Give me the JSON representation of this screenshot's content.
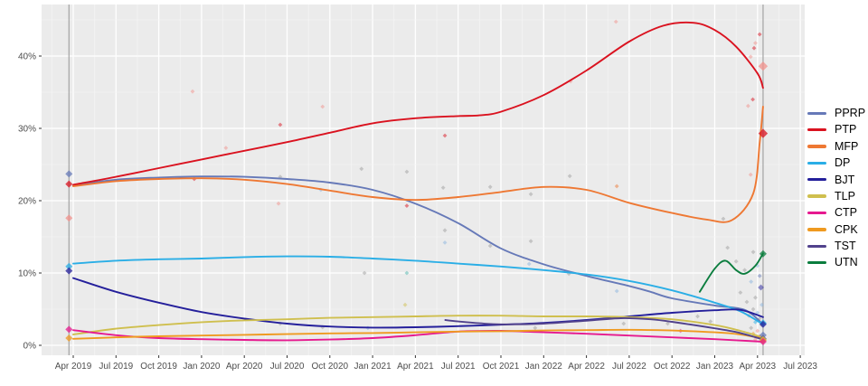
{
  "chart_data": {
    "type": "line",
    "title": "",
    "xlabel": "",
    "ylabel": "",
    "grid": true,
    "legend_position": "right",
    "x_tick_labels": [
      "Apr 2019",
      "Jul 2019",
      "Oct 2019",
      "Jan 2020",
      "Apr 2020",
      "Jul 2020",
      "Oct 2020",
      "Jan 2021",
      "Apr 2021",
      "Jul 2021",
      "Oct 2021",
      "Jan 2022",
      "Apr 2022",
      "Jul 2022",
      "Oct 2022",
      "Jan 2023",
      "Apr 2023",
      "Jul 2023"
    ],
    "y_tick_labels": [
      "0%",
      "10%",
      "20%",
      "30%",
      "40%"
    ],
    "y_tick_values": [
      0,
      10,
      20,
      30,
      40
    ],
    "x_domain_quarters": [
      -0.74,
      17.1
    ],
    "y_domain_pct": [
      -1.4,
      47.1
    ],
    "election_markers_x": [
      -0.1,
      16.13
    ],
    "series": [
      {
        "name": "PPRP",
        "color": "#6679b8",
        "points": [
          [
            0,
            22.1
          ],
          [
            1,
            22.9
          ],
          [
            2,
            23.2
          ],
          [
            3,
            23.35
          ],
          [
            4,
            23.3
          ],
          [
            5,
            23.0
          ],
          [
            6,
            22.5
          ],
          [
            7,
            21.5
          ],
          [
            8,
            19.6
          ],
          [
            9,
            16.9
          ],
          [
            10,
            13.4
          ],
          [
            11,
            11.2
          ],
          [
            12,
            9.6
          ],
          [
            13,
            8.2
          ],
          [
            13.5,
            7.4
          ],
          [
            14,
            6.5
          ],
          [
            15,
            5.5
          ],
          [
            15.7,
            4.9
          ],
          [
            16.13,
            2.9
          ]
        ]
      },
      {
        "name": "PTP",
        "color": "#da121f",
        "points": [
          [
            0,
            22.2
          ],
          [
            1,
            23.3
          ],
          [
            2,
            24.5
          ],
          [
            3,
            25.7
          ],
          [
            4,
            26.9
          ],
          [
            5,
            28.1
          ],
          [
            6,
            29.4
          ],
          [
            7,
            30.7
          ],
          [
            8,
            31.4
          ],
          [
            9,
            31.7
          ],
          [
            9.5,
            31.8
          ],
          [
            10,
            32.3
          ],
          [
            11,
            34.6
          ],
          [
            12,
            38.0
          ],
          [
            13,
            42.0
          ],
          [
            13.8,
            44.2
          ],
          [
            14.5,
            44.6
          ],
          [
            15,
            43.6
          ],
          [
            15.5,
            41.3
          ],
          [
            16,
            37.6
          ],
          [
            16.13,
            35.6
          ]
        ]
      },
      {
        "name": "MFP",
        "color": "#ee7833",
        "points": [
          [
            0,
            22.0
          ],
          [
            1,
            22.7
          ],
          [
            2,
            23.0
          ],
          [
            3,
            23.1
          ],
          [
            4,
            22.9
          ],
          [
            5,
            22.3
          ],
          [
            6,
            21.4
          ],
          [
            7,
            20.5
          ],
          [
            8,
            20.1
          ],
          [
            9,
            20.5
          ],
          [
            10,
            21.2
          ],
          [
            11,
            21.9
          ],
          [
            12,
            21.5
          ],
          [
            13,
            19.7
          ],
          [
            14,
            18.3
          ],
          [
            14.8,
            17.4
          ],
          [
            15.4,
            17.3
          ],
          [
            15.9,
            21.0
          ],
          [
            16.05,
            28.0
          ],
          [
            16.13,
            33.0
          ]
        ]
      },
      {
        "name": "DP",
        "color": "#2aaee6",
        "points": [
          [
            0,
            11.3
          ],
          [
            1,
            11.7
          ],
          [
            2,
            11.9
          ],
          [
            3,
            12.0
          ],
          [
            4,
            12.2
          ],
          [
            5,
            12.3
          ],
          [
            6,
            12.25
          ],
          [
            7,
            12.0
          ],
          [
            8,
            11.7
          ],
          [
            9,
            11.3
          ],
          [
            10,
            10.9
          ],
          [
            11,
            10.4
          ],
          [
            12,
            9.8
          ],
          [
            13,
            8.9
          ],
          [
            14,
            7.6
          ],
          [
            15,
            5.9
          ],
          [
            15.6,
            4.7
          ],
          [
            16.13,
            2.9
          ]
        ]
      },
      {
        "name": "BJT",
        "color": "#241f9b",
        "points": [
          [
            0,
            9.3
          ],
          [
            1,
            7.4
          ],
          [
            2,
            5.9
          ],
          [
            3,
            4.6
          ],
          [
            4,
            3.7
          ],
          [
            5,
            3.0
          ],
          [
            6,
            2.6
          ],
          [
            7,
            2.45
          ],
          [
            8,
            2.5
          ],
          [
            9,
            2.65
          ],
          [
            10,
            2.85
          ],
          [
            11,
            3.1
          ],
          [
            12,
            3.5
          ],
          [
            13,
            4.0
          ],
          [
            14,
            4.5
          ],
          [
            15,
            4.85
          ],
          [
            15.6,
            4.9
          ],
          [
            16.13,
            3.9
          ]
        ]
      },
      {
        "name": "TLP",
        "color": "#cfbf4e",
        "points": [
          [
            0,
            1.5
          ],
          [
            1,
            2.3
          ],
          [
            2,
            2.8
          ],
          [
            3,
            3.2
          ],
          [
            4,
            3.45
          ],
          [
            5,
            3.6
          ],
          [
            6,
            3.8
          ],
          [
            7,
            3.9
          ],
          [
            8,
            4.0
          ],
          [
            9,
            4.1
          ],
          [
            10,
            4.1
          ],
          [
            11,
            4.0
          ],
          [
            12,
            4.0
          ],
          [
            13,
            3.9
          ],
          [
            14,
            3.6
          ],
          [
            15,
            2.8
          ],
          [
            15.6,
            2.0
          ],
          [
            16.13,
            1.1
          ]
        ]
      },
      {
        "name": "CTP",
        "color": "#e6198f",
        "points": [
          [
            0,
            2.1
          ],
          [
            1,
            1.4
          ],
          [
            2,
            1.0
          ],
          [
            3,
            0.85
          ],
          [
            4,
            0.75
          ],
          [
            5,
            0.7
          ],
          [
            6,
            0.8
          ],
          [
            7,
            1.0
          ],
          [
            8,
            1.4
          ],
          [
            9,
            1.9
          ],
          [
            10,
            2.0
          ],
          [
            11,
            1.8
          ],
          [
            12,
            1.6
          ],
          [
            13,
            1.35
          ],
          [
            14,
            1.1
          ],
          [
            15,
            0.85
          ],
          [
            16.13,
            0.5
          ]
        ]
      },
      {
        "name": "CPK",
        "color": "#ef9a20",
        "points": [
          [
            0,
            0.9
          ],
          [
            1,
            1.1
          ],
          [
            2,
            1.25
          ],
          [
            3,
            1.35
          ],
          [
            4,
            1.45
          ],
          [
            5,
            1.55
          ],
          [
            6,
            1.65
          ],
          [
            7,
            1.7
          ],
          [
            8,
            1.8
          ],
          [
            9,
            1.9
          ],
          [
            10,
            1.95
          ],
          [
            11,
            2.05
          ],
          [
            12,
            2.1
          ],
          [
            13,
            2.15
          ],
          [
            14,
            2.05
          ],
          [
            15,
            1.8
          ],
          [
            15.6,
            1.5
          ],
          [
            16.13,
            0.95
          ]
        ]
      },
      {
        "name": "TST",
        "color": "#51428c",
        "points": [
          [
            8.7,
            3.5
          ],
          [
            9,
            3.3
          ],
          [
            9.5,
            3.05
          ],
          [
            10,
            2.9
          ],
          [
            11,
            3.0
          ],
          [
            12,
            3.4
          ],
          [
            12.8,
            3.75
          ],
          [
            13.5,
            3.6
          ],
          [
            14,
            3.25
          ],
          [
            15,
            2.35
          ],
          [
            15.6,
            1.7
          ],
          [
            16.13,
            0.8
          ]
        ]
      },
      {
        "name": "UTN",
        "color": "#0b7d3e",
        "points": [
          [
            14.65,
            7.4
          ],
          [
            15.0,
            10.6
          ],
          [
            15.25,
            11.7
          ],
          [
            15.5,
            10.4
          ],
          [
            15.7,
            9.9
          ],
          [
            15.95,
            11.0
          ],
          [
            16.13,
            12.7
          ]
        ]
      }
    ],
    "result_markers": [
      [
        -0.1,
        23.7,
        "PPRP",
        2
      ],
      [
        -0.1,
        22.3,
        "PTP",
        2
      ],
      [
        -0.1,
        17.6,
        "salmon",
        2
      ],
      [
        -0.1,
        10.9,
        "DP",
        2
      ],
      [
        -0.1,
        10.3,
        "BJT",
        2
      ],
      [
        -0.1,
        2.2,
        "CTP",
        2
      ],
      [
        -0.1,
        1.0,
        "CPK",
        2
      ],
      [
        16.13,
        38.6,
        "salmon",
        3
      ],
      [
        16.13,
        29.3,
        "PTP",
        3
      ],
      [
        16.13,
        12.65,
        "UTN",
        2
      ],
      [
        16.13,
        3.1,
        "DP",
        2
      ],
      [
        16.13,
        2.9,
        "BJT",
        2
      ],
      [
        16.13,
        1.4,
        "PPRP",
        2
      ],
      [
        16.13,
        0.9,
        "TST",
        2
      ],
      [
        16.13,
        0.8,
        "TLP",
        2
      ],
      [
        16.13,
        0.65,
        "CPK",
        2
      ],
      [
        16.13,
        0.5,
        "CTP",
        2
      ]
    ],
    "scatter": [
      [
        2.79,
        35.1,
        "salmon",
        1
      ],
      [
        5.83,
        33.0,
        "salmon",
        1
      ],
      [
        4.84,
        30.5,
        "PTP",
        1
      ],
      [
        3.57,
        27.3,
        "salmon",
        1
      ],
      [
        2.83,
        23.0,
        "PTP",
        1
      ],
      [
        4.84,
        23.3,
        "gray",
        1
      ],
      [
        6.74,
        24.4,
        "gray",
        1
      ],
      [
        7.8,
        24.0,
        "gray",
        1
      ],
      [
        5.79,
        21.5,
        "ltblue",
        1
      ],
      [
        4.8,
        19.6,
        "salmon",
        1
      ],
      [
        7.8,
        19.3,
        "PTP",
        1
      ],
      [
        8.69,
        29.0,
        "PTP",
        1
      ],
      [
        8.65,
        21.8,
        "gray",
        1
      ],
      [
        9.75,
        21.9,
        "gray",
        1
      ],
      [
        10.7,
        20.9,
        "gray",
        1
      ],
      [
        11.61,
        23.4,
        "gray",
        1
      ],
      [
        12.71,
        22.0,
        "MFP",
        1
      ],
      [
        8.69,
        15.9,
        "gray",
        1
      ],
      [
        8.69,
        14.2,
        "ltblue",
        1
      ],
      [
        9.75,
        13.75,
        "gray",
        1
      ],
      [
        10.7,
        14.4,
        "gray",
        1
      ],
      [
        11.63,
        36.5,
        "salmon",
        1
      ],
      [
        12.69,
        44.75,
        "salmon",
        1
      ],
      [
        6.81,
        10.0,
        "gray",
        1
      ],
      [
        7.8,
        10.0,
        "teal",
        1
      ],
      [
        10.66,
        11.25,
        "ltblue",
        1
      ],
      [
        11.59,
        9.9,
        "gray",
        1
      ],
      [
        12.71,
        7.5,
        "ltblue",
        1
      ],
      [
        4.84,
        3.0,
        "gray",
        1
      ],
      [
        5.83,
        2.5,
        "gray",
        1
      ],
      [
        6.89,
        2.4,
        "ltblue",
        1
      ],
      [
        7.76,
        5.6,
        "TLP",
        1
      ],
      [
        10.8,
        2.4,
        "gray",
        1
      ],
      [
        12.87,
        3.0,
        "gray",
        1
      ],
      [
        13.9,
        3.0,
        "gray",
        1
      ],
      [
        14.2,
        2.0,
        "CTP",
        1
      ],
      [
        14.6,
        4.0,
        "gray",
        1
      ],
      [
        14.9,
        3.3,
        "gray",
        1
      ],
      [
        16.05,
        43.0,
        "PTP",
        1
      ],
      [
        15.95,
        41.8,
        "salmon",
        1
      ],
      [
        15.92,
        41.1,
        "PTP",
        1
      ],
      [
        15.84,
        39.9,
        "salmon",
        1
      ],
      [
        15.89,
        34.0,
        "PTP",
        1
      ],
      [
        15.78,
        33.1,
        "salmon",
        1
      ],
      [
        15.84,
        23.6,
        "salmon",
        1
      ],
      [
        15.2,
        17.5,
        "gray",
        1
      ],
      [
        15.3,
        13.5,
        "gray",
        1
      ],
      [
        15.9,
        12.9,
        "gray",
        1
      ],
      [
        15.5,
        11.6,
        "gray",
        1
      ],
      [
        16.0,
        11.0,
        "ltblue",
        1
      ],
      [
        15.7,
        10.4,
        "gray",
        1
      ],
      [
        16.05,
        9.6,
        "PPRP",
        1
      ],
      [
        15.85,
        8.8,
        "ltblue",
        1
      ],
      [
        16.08,
        8.0,
        "BJT",
        2
      ],
      [
        15.6,
        7.3,
        "gray",
        1
      ],
      [
        15.95,
        6.6,
        "gray",
        1
      ],
      [
        15.75,
        6.0,
        "gray",
        1
      ],
      [
        16.1,
        5.6,
        "ltblue",
        1
      ],
      [
        15.9,
        5.0,
        "gray",
        1
      ],
      [
        16.0,
        4.5,
        "ltblue",
        1
      ],
      [
        15.8,
        4.1,
        "gray",
        1
      ],
      [
        16.05,
        3.7,
        "gray",
        1
      ],
      [
        15.95,
        3.2,
        "DP",
        1
      ],
      [
        16.1,
        2.8,
        "gray",
        1
      ],
      [
        15.85,
        2.4,
        "gray",
        1
      ],
      [
        16.0,
        2.0,
        "salmon",
        1
      ],
      [
        15.9,
        1.6,
        "CPK",
        1
      ],
      [
        16.05,
        1.2,
        "CTP",
        1
      ],
      [
        15.95,
        0.8,
        "salmon",
        1
      ],
      [
        16.1,
        0.5,
        "gray",
        1
      ]
    ],
    "point_colors": {
      "gray": "#9e9e9e",
      "salmon": "#f2928c",
      "ltblue": "#8ab4e0",
      "teal": "#4db6ac"
    },
    "style": {
      "panel_bg": "#ebebeb",
      "grid_major": "#ffffff",
      "grid_minor": "#f4f4f4",
      "marker_line": "#a3a3a3",
      "axis_text": "#4d4d4d",
      "tick_mark": "#333333"
    }
  }
}
